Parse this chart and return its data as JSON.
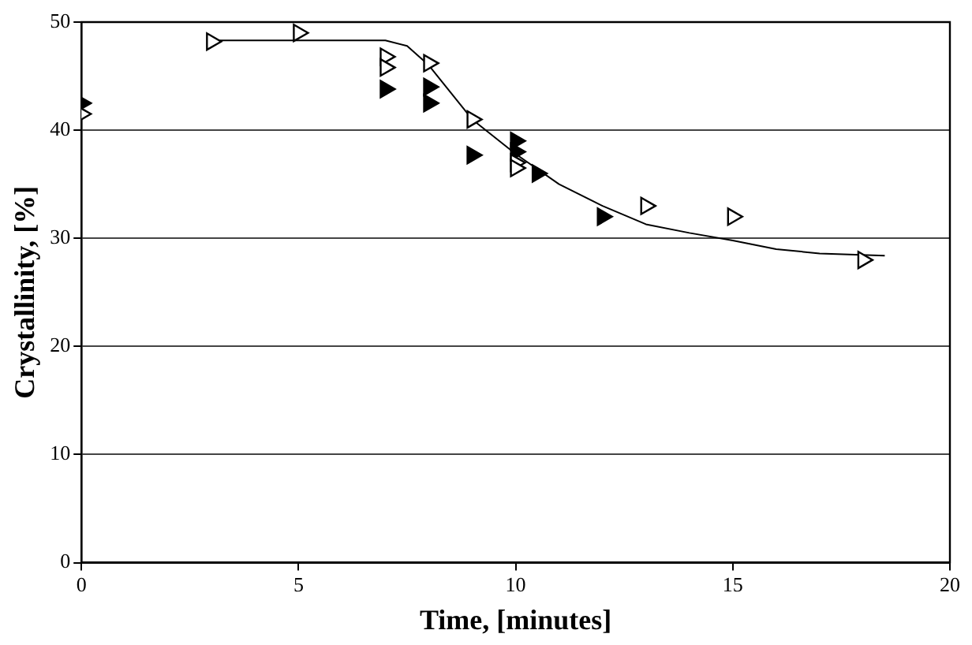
{
  "chart_data": {
    "type": "scatter",
    "xlabel": "Time, [minutes]",
    "ylabel": "Crystallinity, [%]",
    "xlim": [
      0,
      20
    ],
    "xticks": [
      0,
      5,
      10,
      15,
      20
    ],
    "ylim": [
      0,
      50
    ],
    "yticks": [
      0,
      10,
      20,
      30,
      40,
      50
    ],
    "grid": "y",
    "legend": false,
    "marker": "triangle",
    "series": [
      {
        "color": "#ffffff",
        "x": [
          0,
          3,
          5,
          7,
          7,
          8,
          9,
          10,
          10,
          13,
          15,
          18
        ],
        "values": [
          41.5,
          48.2,
          49,
          46.8,
          45.8,
          46.2,
          41,
          37,
          36.5,
          33,
          32,
          28
        ]
      },
      {
        "color": "#000000",
        "x": [
          0,
          7,
          8,
          8,
          9,
          10,
          10,
          10.5,
          12
        ],
        "values": [
          42.5,
          43.8,
          44,
          42.5,
          37.7,
          39,
          38,
          36,
          32
        ]
      },
      {
        "type": "line",
        "color": "#000000",
        "marker": "none",
        "x": [
          3,
          7,
          7.5,
          8,
          8.5,
          9,
          10,
          11,
          12,
          13,
          14,
          15,
          16,
          17,
          18.5
        ],
        "values": [
          48.3,
          48.3,
          47.8,
          46,
          43.5,
          41,
          37.8,
          35,
          33,
          31.3,
          30.5,
          29.8,
          29,
          28.6,
          28.4
        ]
      }
    ]
  }
}
